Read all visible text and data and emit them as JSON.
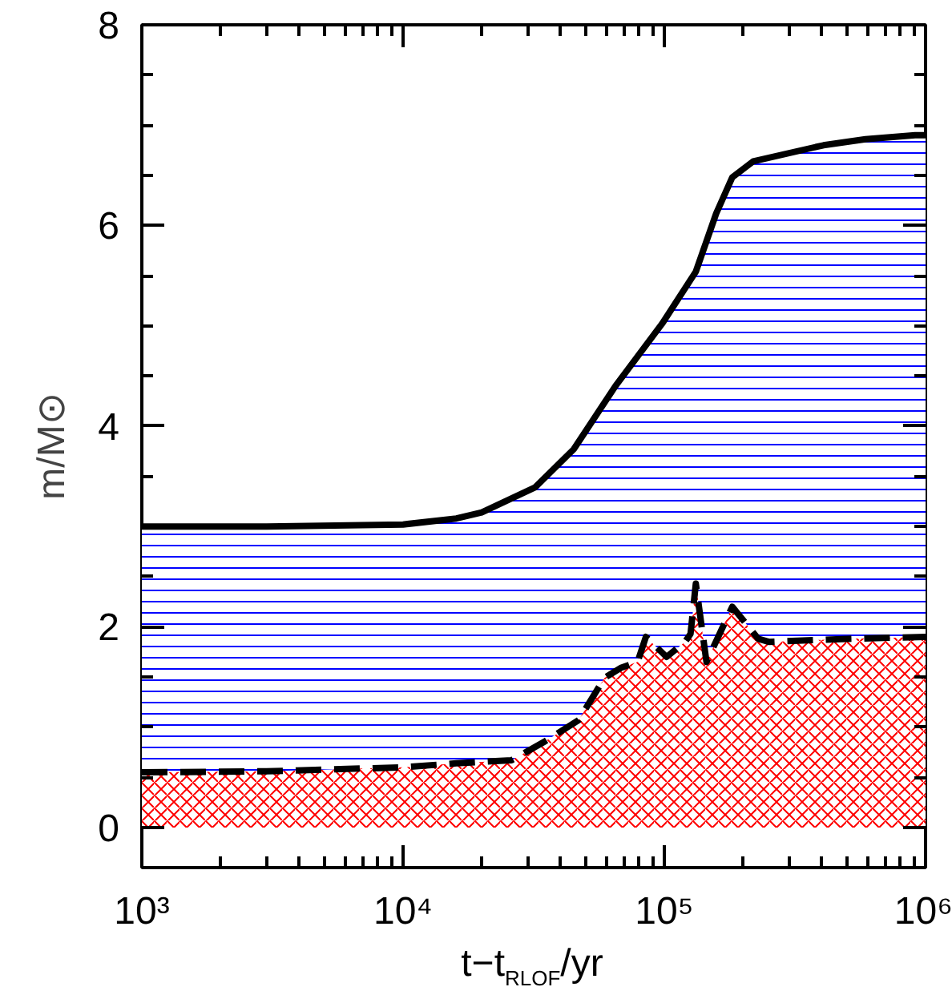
{
  "chart_data": {
    "type": "area",
    "xlabel": "t−t$_{RLOF}$/yr",
    "ylabel": "m/M⊙",
    "log": "x",
    "xlim": [
      1000,
      1000000
    ],
    "ylim": [
      -0.4,
      8
    ],
    "xticks": [
      {
        "value": 1000,
        "label": "10³"
      },
      {
        "value": 10000,
        "label": "10⁴"
      },
      {
        "value": 100000,
        "label": "10⁵"
      },
      {
        "value": 1000000,
        "label": "10⁶"
      }
    ],
    "yticks": [
      0,
      2,
      4,
      6,
      8
    ],
    "grid": false,
    "series": [
      {
        "color": "#0000ff",
        "line_style": "solid",
        "x": [
          1000,
          3000,
          10000,
          16000,
          20000,
          32000,
          45000,
          65000,
          98000,
          132000,
          158000,
          182000,
          219000,
          407000,
          589000,
          912000,
          1000000
        ],
        "values": [
          3.0,
          3.0,
          3.02,
          3.08,
          3.14,
          3.39,
          3.77,
          4.4,
          5.02,
          5.54,
          6.12,
          6.48,
          6.64,
          6.8,
          6.86,
          6.9,
          6.9
        ]
      },
      {
        "color": "#ff0000",
        "line_style": "dashed",
        "x": [
          1000,
          3000,
          10000,
          16000,
          26000,
          35000,
          47000,
          59000,
          68000,
          79000,
          85000,
          102000,
          120000,
          126000,
          132000,
          145000,
          182000,
          229000,
          251000,
          500000,
          1000000
        ],
        "values": [
          0.55,
          0.56,
          0.6,
          0.64,
          0.67,
          0.86,
          1.07,
          1.49,
          1.59,
          1.65,
          1.9,
          1.7,
          1.85,
          1.93,
          2.43,
          1.65,
          2.2,
          1.88,
          1.85,
          1.88,
          1.9
        ]
      }
    ]
  }
}
